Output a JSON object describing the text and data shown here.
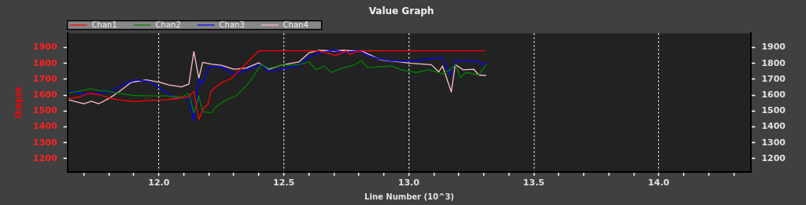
{
  "chart_data": {
    "type": "line",
    "title": "Value Graph",
    "xlabel": "Line Number (10^3)",
    "ylabel": "Output",
    "xlim": [
      11.634,
      14.37
    ],
    "xticks": [
      {
        "value": 11.7,
        "label": null
      },
      {
        "value": 11.8,
        "label": null
      },
      {
        "value": 11.9,
        "label": null
      },
      {
        "value": 12,
        "label": "12.0"
      },
      {
        "value": 12.1,
        "label": null
      },
      {
        "value": 12.2,
        "label": null
      },
      {
        "value": 12.3,
        "label": null
      },
      {
        "value": 12.4,
        "label": null
      },
      {
        "value": 12.5,
        "label": "12.5"
      },
      {
        "value": 12.6,
        "label": null
      },
      {
        "value": 12.7,
        "label": null
      },
      {
        "value": 12.8,
        "label": null
      },
      {
        "value": 12.9,
        "label": null
      },
      {
        "value": 13,
        "label": "13.0"
      },
      {
        "value": 13.1,
        "label": null
      },
      {
        "value": 13.2,
        "label": null
      },
      {
        "value": 13.3,
        "label": null
      },
      {
        "value": 13.4,
        "label": null
      },
      {
        "value": 13.5,
        "label": "13.5"
      },
      {
        "value": 13.6,
        "label": null
      },
      {
        "value": 13.7,
        "label": null
      },
      {
        "value": 13.8,
        "label": null
      },
      {
        "value": 13.9,
        "label": null
      },
      {
        "value": 14,
        "label": "14.0"
      },
      {
        "value": 14.1,
        "label": null
      },
      {
        "value": 14.2,
        "label": null
      },
      {
        "value": 14.3,
        "label": null
      }
    ],
    "ylim": [
      1116,
      1990
    ],
    "yticks": [
      1200,
      1300,
      1400,
      1500,
      1600,
      1700,
      1800,
      1900
    ],
    "y2lim": [
      1116,
      1990
    ],
    "y2ticks": [
      1200,
      1300,
      1400,
      1500,
      1600,
      1700,
      1800,
      1900
    ],
    "grid": "x",
    "legend": "top",
    "marker": "none",
    "line_style": "solid",
    "series": [
      {
        "name": "Chan1",
        "color": "#ff0000",
        "x": [
          11.639,
          11.68,
          11.72,
          11.76,
          11.8,
          11.84,
          11.9,
          11.965,
          12.03,
          12.09,
          12.12,
          12.14,
          12.16,
          12.18,
          12.195,
          12.21,
          12.25,
          12.29,
          12.35,
          12.4,
          12.64,
          12.707,
          12.75,
          12.765,
          12.8,
          13.308
        ],
        "values": [
          1579,
          1587,
          1611,
          1603,
          1582,
          1570,
          1559,
          1566,
          1571,
          1582,
          1590,
          1625,
          1447,
          1521,
          1537,
          1628,
          1678,
          1706,
          1801,
          1880,
          1880,
          1850,
          1880,
          1857,
          1880,
          1880
        ]
      },
      {
        "name": "Chan2",
        "color": "#008000",
        "x": [
          11.639,
          11.68,
          11.73,
          11.76,
          11.8,
          11.84,
          11.9,
          11.965,
          12.03,
          12.09,
          12.12,
          12.14,
          12.16,
          12.175,
          12.21,
          12.23,
          12.27,
          12.31,
          12.36,
          12.41,
          12.44,
          12.49,
          12.56,
          12.6,
          12.63,
          12.66,
          12.69,
          12.73,
          12.785,
          12.81,
          12.836,
          12.89,
          12.93,
          12.97,
          13.03,
          13.08,
          13.135,
          13.166,
          13.186,
          13.207,
          13.227,
          13.28,
          13.31
        ],
        "values": [
          1615,
          1625,
          1641,
          1628,
          1625,
          1611,
          1598,
          1595,
          1595,
          1587,
          1611,
          1488,
          1595,
          1496,
          1488,
          1529,
          1570,
          1595,
          1678,
          1793,
          1768,
          1789,
          1792,
          1809,
          1760,
          1784,
          1743,
          1768,
          1792,
          1817,
          1773,
          1779,
          1784,
          1760,
          1743,
          1760,
          1735,
          1760,
          1792,
          1710,
          1743,
          1727,
          1792
        ]
      },
      {
        "name": "Chan3",
        "color": "#0000ff",
        "x": [
          11.639,
          11.7,
          11.76,
          11.82,
          11.86,
          11.91,
          11.965,
          12.005,
          12.06,
          12.1,
          12.12,
          12.14,
          12.16,
          12.175,
          12.2,
          12.25,
          12.3,
          12.35,
          12.41,
          12.44,
          12.49,
          12.56,
          12.6,
          12.64,
          12.7,
          12.74,
          12.805,
          12.836,
          12.89,
          12.93,
          12.99,
          13.05,
          13.135,
          13.166,
          13.186,
          13.227,
          13.28,
          13.29,
          13.31
        ],
        "values": [
          1625,
          1608,
          1611,
          1628,
          1669,
          1697,
          1685,
          1644,
          1587,
          1582,
          1587,
          1439,
          1703,
          1674,
          1776,
          1781,
          1730,
          1760,
          1793,
          1752,
          1763,
          1784,
          1842,
          1866,
          1883,
          1871,
          1878,
          1850,
          1825,
          1817,
          1812,
          1822,
          1838,
          1727,
          1822,
          1812,
          1812,
          1792,
          1809
        ]
      },
      {
        "name": "Chan4",
        "color": "#ffc0cb",
        "x": [
          11.639,
          11.7,
          11.73,
          11.76,
          11.8,
          11.84,
          11.89,
          11.95,
          12.005,
          12.04,
          12.09,
          12.12,
          12.14,
          12.16,
          12.175,
          12.21,
          12.25,
          12.3,
          12.35,
          12.4,
          12.44,
          12.49,
          12.56,
          12.6,
          12.64,
          12.7,
          12.74,
          12.815,
          12.89,
          12.95,
          13.01,
          13.09,
          13.12,
          13.135,
          13.17,
          13.186,
          13.217,
          13.26,
          13.28,
          13.31
        ],
        "values": [
          1570,
          1546,
          1562,
          1546,
          1579,
          1620,
          1681,
          1697,
          1681,
          1664,
          1652,
          1669,
          1875,
          1706,
          1807,
          1796,
          1788,
          1763,
          1771,
          1804,
          1763,
          1789,
          1809,
          1866,
          1883,
          1878,
          1883,
          1875,
          1822,
          1812,
          1801,
          1792,
          1747,
          1784,
          1620,
          1792,
          1760,
          1763,
          1727,
          1724
        ]
      }
    ]
  }
}
